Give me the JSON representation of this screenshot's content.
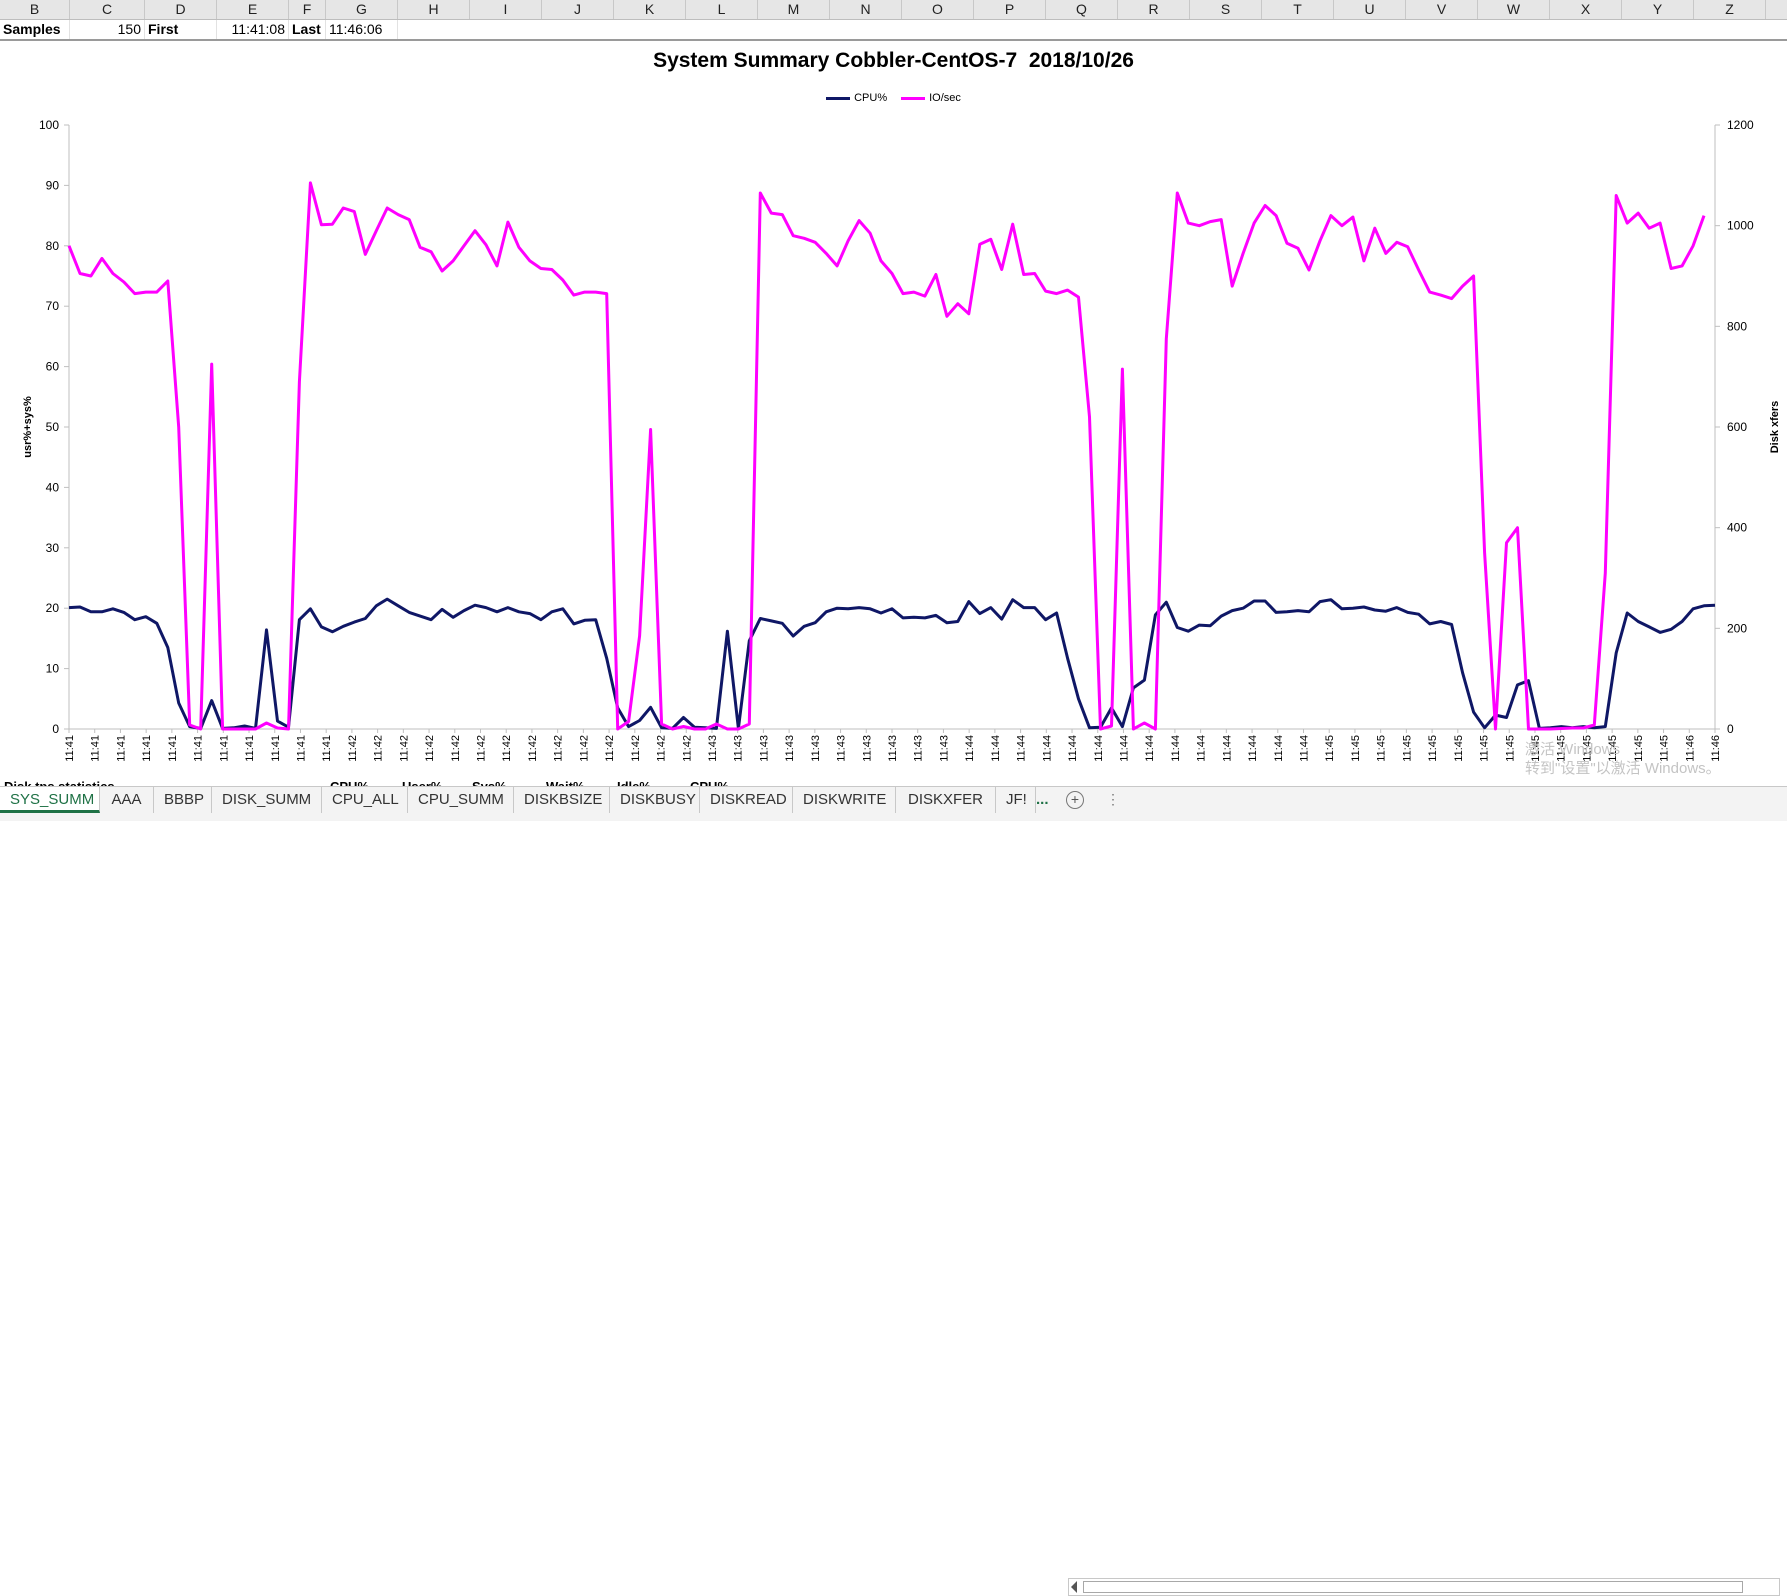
{
  "spreadsheet": {
    "columns": [
      "B",
      "C",
      "D",
      "E",
      "F",
      "G",
      "H",
      "I",
      "J",
      "K",
      "L",
      "M",
      "N",
      "O",
      "P",
      "Q",
      "R",
      "S",
      "T",
      "U",
      "V",
      "W",
      "X",
      "Y",
      "Z"
    ],
    "row1": {
      "samples_label": "Samples",
      "samples_value": "150",
      "first_label": "First",
      "first_value": "11:41:08",
      "last_label": "Last",
      "last_value": "11:46:06"
    },
    "partial_row_labels": [
      "Disk tps statistics",
      "CPU%",
      "User%",
      "Sys%",
      "Wait%",
      "Idle%",
      "CPU%"
    ]
  },
  "tabs": {
    "items": [
      "SYS_SUMM",
      "AAA",
      "BBBP",
      "DISK_SUMM",
      "CPU_ALL",
      "CPU_SUMM",
      "DISKBSIZE",
      "DISKBUSY",
      "DISKREAD",
      "DISKWRITE",
      "DISKXFER",
      "JF!"
    ],
    "active": "SYS_SUMM",
    "more_label": "...",
    "add_icon": "plus-circle-icon",
    "accent_color": "#1e7145"
  },
  "watermark": {
    "line1": "激活 Windows",
    "line2": "转到\"设置\"以激活 Windows。"
  },
  "chart_data": {
    "type": "line",
    "title": "System Summary Cobbler-CentOS-7  2018/10/26",
    "ylabel": "usr%+sys%",
    "y2label": "Disk xfers",
    "ylim": [
      0,
      100
    ],
    "y2lim": [
      0,
      1200
    ],
    "yticks": [
      0,
      10,
      20,
      30,
      40,
      50,
      60,
      70,
      80,
      90,
      100
    ],
    "y2ticks": [
      0,
      200,
      400,
      600,
      800,
      1000,
      1200
    ],
    "legend_position": "top-center",
    "grid": false,
    "x_labels": [
      "11:41",
      "11:41",
      "11:41",
      "11:41",
      "11:41",
      "11:41",
      "11:41",
      "11:41",
      "11:41",
      "11:41",
      "11:41",
      "11:42",
      "11:42",
      "11:42",
      "11:42",
      "11:42",
      "11:42",
      "11:42",
      "11:42",
      "11:42",
      "11:42",
      "11:42",
      "11:42",
      "11:42",
      "11:42",
      "11:43",
      "11:43",
      "11:43",
      "11:43",
      "11:43",
      "11:43",
      "11:43",
      "11:43",
      "11:43",
      "11:43",
      "11:44",
      "11:44",
      "11:44",
      "11:44",
      "11:44",
      "11:44",
      "11:44",
      "11:44",
      "11:44",
      "11:44",
      "11:44",
      "11:44",
      "11:44",
      "11:44",
      "11:45",
      "11:45",
      "11:45",
      "11:45",
      "11:45",
      "11:45",
      "11:45",
      "11:45",
      "11:45",
      "11:45",
      "11:45",
      "11:45",
      "11:45",
      "11:45",
      "11:46",
      "11:46"
    ],
    "series": [
      {
        "name": "CPU%",
        "axis": "left",
        "color": "#0f1766",
        "values": [
          20.1,
          20.2,
          19.4,
          19.4,
          19.9,
          19.3,
          18.1,
          18.6,
          17.5,
          13.5,
          4.3,
          0.4,
          0.1,
          4.7,
          0.1,
          0.2,
          0.5,
          0.1,
          16.4,
          1.3,
          0.3,
          18.1,
          19.9,
          16.9,
          16.1,
          17.0,
          17.7,
          18.3,
          20.4,
          21.5,
          20.4,
          19.3,
          18.7,
          18.1,
          19.8,
          18.5,
          19.6,
          20.5,
          20.1,
          19.4,
          20.1,
          19.4,
          19.1,
          18.1,
          19.4,
          19.9,
          17.4,
          18.0,
          18.1,
          11.7,
          3.5,
          0.4,
          1.4,
          3.6,
          0.2,
          0.1,
          1.9,
          0.3,
          0.2,
          0.1,
          16.2,
          0.1,
          14.6,
          18.3,
          17.9,
          17.5,
          15.4,
          17.0,
          17.6,
          19.4,
          20.0,
          19.9,
          20.1,
          19.9,
          19.2,
          19.9,
          18.4,
          18.5,
          18.4,
          18.8,
          17.6,
          17.8,
          21.1,
          19.1,
          20.1,
          18.2,
          21.4,
          20.1,
          20.1,
          18.1,
          19.2,
          11.7,
          5.0,
          0.2,
          0.3,
          3.5,
          0.4,
          6.8,
          8.1,
          18.9,
          21.0,
          16.8,
          16.2,
          17.2,
          17.1,
          18.7,
          19.6,
          20.0,
          21.2,
          21.2,
          19.3,
          19.4,
          19.6,
          19.4,
          21.1,
          21.4,
          19.9,
          20.0,
          20.2,
          19.7,
          19.5,
          20.1,
          19.3,
          19.0,
          17.4,
          17.8,
          17.3,
          9.3,
          2.8,
          0.2,
          2.3,
          1.9,
          7.3,
          8.0,
          0.1,
          0.2,
          0.4,
          0.2,
          0.4,
          0.2,
          0.4,
          12.6,
          19.2,
          17.8,
          16.9,
          16.0,
          16.5,
          17.8,
          19.9,
          20.4,
          20.5
        ]
      },
      {
        "name": "IO/sec",
        "axis": "right",
        "color": "#ff00ff",
        "values": [
          960,
          905,
          900,
          935,
          905,
          888,
          865,
          868,
          868,
          890,
          600,
          8,
          0,
          725,
          0,
          0,
          0,
          0,
          12,
          2,
          0,
          690,
          1085,
          1002,
          1003,
          1035,
          1028,
          943,
          990,
          1035,
          1022,
          1012,
          957,
          948,
          910,
          930,
          960,
          990,
          962,
          920,
          1007,
          957,
          930,
          915,
          913,
          892,
          862,
          868,
          868,
          865,
          0,
          15,
          185,
          595,
          10,
          0,
          5,
          0,
          0,
          10,
          0,
          0,
          10,
          1065,
          1025,
          1022,
          980,
          975,
          967,
          945,
          920,
          970,
          1010,
          985,
          930,
          905,
          865,
          868,
          860,
          903,
          820,
          845,
          825,
          963,
          973,
          913,
          1003,
          903,
          905,
          870,
          865,
          872,
          858,
          620,
          0,
          6,
          715,
          0,
          12,
          0,
          775,
          1065,
          1005,
          1000,
          1008,
          1012,
          880,
          945,
          1005,
          1040,
          1020,
          965,
          955,
          912,
          970,
          1020,
          1000,
          1017,
          930,
          995,
          945,
          967,
          958,
          912,
          868,
          862,
          855,
          880,
          900,
          350,
          0,
          370,
          400,
          0,
          0,
          0,
          1,
          2,
          2,
          8,
          310,
          1060,
          1005,
          1025,
          995,
          1005,
          915,
          920,
          960,
          1020
        ]
      }
    ]
  }
}
